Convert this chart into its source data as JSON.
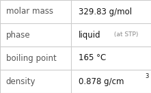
{
  "rows": [
    {
      "label": "molar mass",
      "value": "329.83 g/mol",
      "suffix": null,
      "superscript": null
    },
    {
      "label": "phase",
      "value": "liquid",
      "suffix": " (at STP)",
      "superscript": null
    },
    {
      "label": "boiling point",
      "value": "165 °C",
      "suffix": null,
      "superscript": null
    },
    {
      "label": "density",
      "value": "0.878 g/cm",
      "suffix": null,
      "superscript": "3"
    }
  ],
  "col_split": 0.47,
  "background_color": "#ffffff",
  "border_color": "#cccccc",
  "label_color": "#555555",
  "value_color": "#111111",
  "suffix_color": "#888888",
  "label_fontsize": 8.5,
  "value_fontsize": 8.5,
  "suffix_fontsize": 6.5,
  "super_fontsize": 6.0,
  "font_family": "DejaVu Sans"
}
